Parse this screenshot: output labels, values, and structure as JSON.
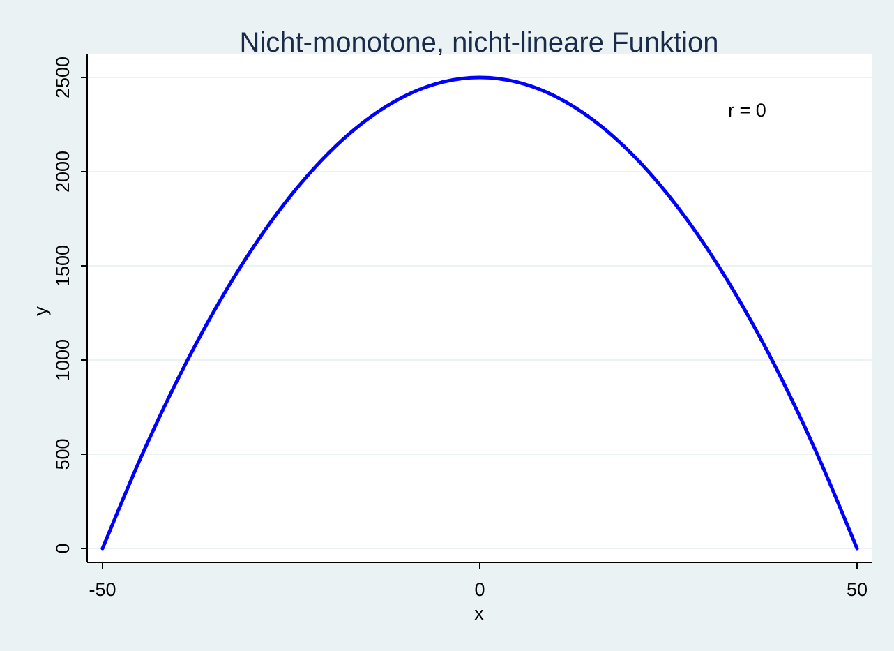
{
  "chart_data": {
    "type": "line",
    "title": "Nicht-monotone, nicht-lineare Funktion",
    "xlabel": "x",
    "ylabel": "y",
    "xlim": [
      -50,
      50
    ],
    "ylim": [
      0,
      2500
    ],
    "x_ticks": [
      -50,
      0,
      50
    ],
    "x_tick_labels": [
      "-50",
      "0",
      "50"
    ],
    "y_ticks": [
      0,
      500,
      1000,
      1500,
      2000,
      2500
    ],
    "y_tick_labels": [
      "0",
      "500",
      "1000",
      "1500",
      "2000",
      "2500"
    ],
    "grid": "horizontal",
    "annotation": "r = 0",
    "series": [
      {
        "color": "#0000ff",
        "x": [
          -50,
          -45,
          -40,
          -35,
          -30,
          -25,
          -20,
          -15,
          -10,
          -5,
          0,
          5,
          10,
          15,
          20,
          25,
          30,
          35,
          40,
          45,
          50
        ],
        "y": [
          0,
          475,
          900,
          1275,
          1600,
          1875,
          2100,
          2275,
          2400,
          2475,
          2500,
          2475,
          2400,
          2275,
          2100,
          1875,
          1600,
          1275,
          900,
          475,
          0
        ]
      }
    ]
  },
  "colors": {
    "background": "#eaf2f3",
    "plot_area": "#ffffff",
    "gridline": "#eaf2f3",
    "line": "#0000ff",
    "title": "#1a2b4a"
  }
}
